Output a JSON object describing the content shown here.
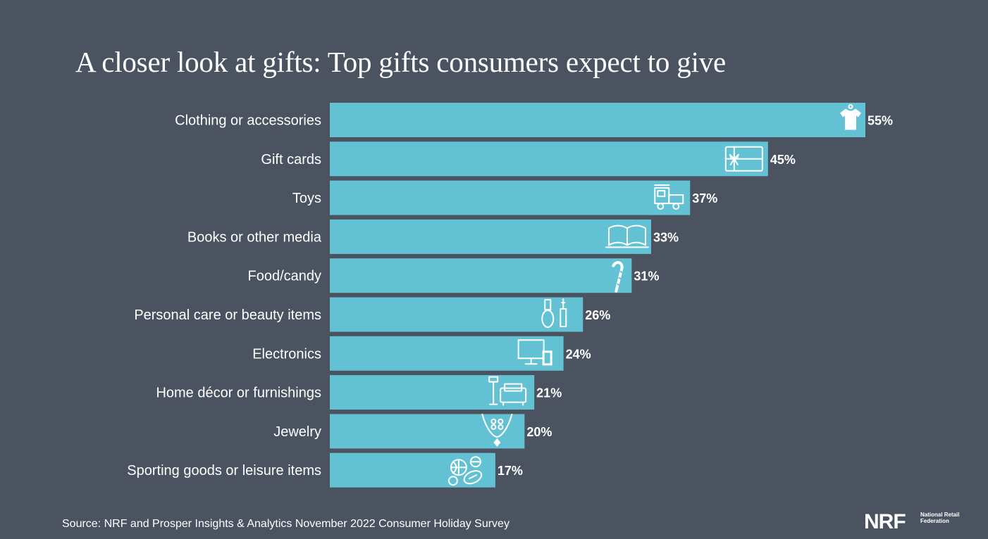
{
  "chart_data": {
    "type": "bar",
    "orientation": "horizontal",
    "title": "A closer look at gifts: Top gifts consumers expect to give",
    "categories": [
      "Clothing or accessories",
      "Gift cards",
      "Toys",
      "Books or other media",
      "Food/candy",
      "Personal care or beauty items",
      "Electronics",
      "Home décor or furnishings",
      "Jewelry",
      "Sporting goods or leisure items"
    ],
    "values": [
      55,
      45,
      37,
      33,
      31,
      26,
      24,
      21,
      20,
      17
    ],
    "value_labels": [
      "55%",
      "45%",
      "37%",
      "33%",
      "31%",
      "26%",
      "24%",
      "21%",
      "20%",
      "17%"
    ],
    "icons": [
      "shirt-icon",
      "gift-card-icon",
      "toy-train-icon",
      "book-icon",
      "candy-cane-icon",
      "beauty-icon",
      "electronics-icon",
      "furniture-icon",
      "jewelry-icon",
      "sports-balls-icon"
    ],
    "xlim": [
      0,
      55
    ],
    "xlabel": "",
    "ylabel": "",
    "grid": false,
    "bar_color": "#62c2d3"
  },
  "footer": {
    "source": "Source: NRF and Prosper Insights & Analytics November 2022 Consumer Holiday Survey",
    "logo_mark": "NRF",
    "logo_sub": "National Retail Federation"
  },
  "colors": {
    "background": "#4b5260",
    "text": "#ffffff",
    "bar": "#62c2d3"
  }
}
